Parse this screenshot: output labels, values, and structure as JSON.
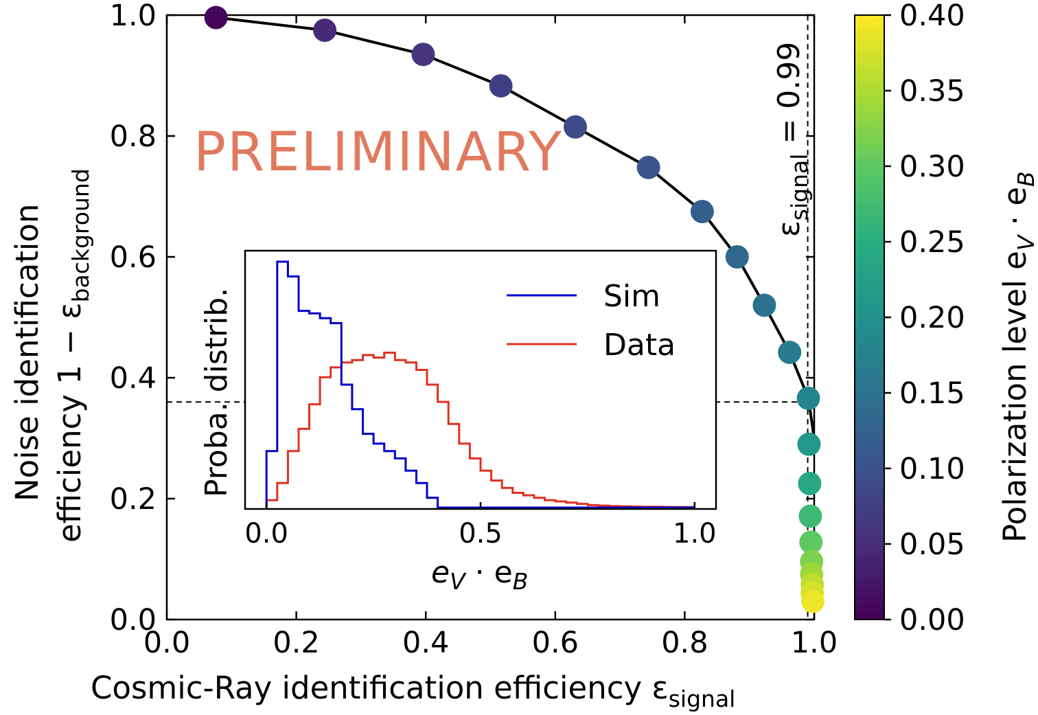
{
  "chart_data": [
    {
      "type": "scatter",
      "title": "",
      "xlabel": "Cosmic-Ray identification efficiency ε",
      "xlabel_subscript": "signal",
      "ylabel_line1": "Noise identification",
      "ylabel_line2": "efficiency 1 − ε",
      "ylabel_subscript": "background",
      "xlim": [
        0.0,
        1.0
      ],
      "ylim": [
        0.0,
        1.0
      ],
      "xticks": [
        "0.0",
        "0.2",
        "0.4",
        "0.6",
        "0.8",
        "1.0"
      ],
      "yticks": [
        "0.0",
        "0.2",
        "0.4",
        "0.6",
        "0.8",
        "1.0"
      ],
      "grid": false,
      "series": [
        {
          "x": [
            0.076,
            0.244,
            0.396,
            0.516,
            0.631,
            0.744,
            0.827,
            0.881,
            0.923,
            0.962,
            0.991,
            0.992,
            0.993,
            0.994,
            0.995,
            0.996,
            0.996,
            0.997,
            0.997,
            0.998
          ],
          "y": [
            0.996,
            0.975,
            0.935,
            0.883,
            0.815,
            0.748,
            0.675,
            0.6,
            0.52,
            0.442,
            0.366,
            0.29,
            0.225,
            0.171,
            0.128,
            0.096,
            0.075,
            0.058,
            0.044,
            0.03
          ],
          "color_values": [
            0.005,
            0.045,
            0.06,
            0.075,
            0.09,
            0.105,
            0.12,
            0.135,
            0.15,
            0.165,
            0.18,
            0.21,
            0.24,
            0.27,
            0.3,
            0.32,
            0.34,
            0.36,
            0.375,
            0.39
          ]
        },
        {
          "type": "line",
          "x": [
            0.076,
            0.244,
            0.396,
            0.516,
            0.631,
            0.744,
            0.827,
            0.881,
            0.923,
            0.962,
            0.991,
            1.0
          ],
          "y": [
            0.996,
            0.975,
            0.935,
            0.883,
            0.815,
            0.748,
            0.675,
            0.6,
            0.52,
            0.442,
            0.366,
            0.3
          ],
          "color": "#000000"
        }
      ],
      "annotations": {
        "watermark": "PRELIMINARY",
        "vline_label": "ε",
        "vline_label_subscript": "signal",
        "vline_label_suffix": " = 0.99",
        "vline_x": 0.99,
        "hline_y": 0.36
      },
      "colorbar": {
        "label": "Polarization level e",
        "label_sub1": "V",
        "label_mid": " · e",
        "label_sub2": "B",
        "range": [
          0.0,
          0.4
        ],
        "ticks": [
          "0.00",
          "0.05",
          "0.10",
          "0.15",
          "0.20",
          "0.25",
          "0.30",
          "0.35",
          "0.40"
        ],
        "colormap": "viridis"
      }
    },
    {
      "type": "line",
      "subtype": "step-histogram",
      "xlabel": "e",
      "xlabel_sub1": "V",
      "xlabel_mid": " · e",
      "xlabel_sub2": "B",
      "ylabel": "Proba. distrib.",
      "xlim": [
        -0.05,
        1.05
      ],
      "xticks": [
        "0.0",
        "0.5",
        "1.0"
      ],
      "legend_placement": "upper-right",
      "bin_width": 0.025,
      "series": [
        {
          "name": "Sim",
          "color": "#0000cc",
          "values": [
            0.23,
            1.0,
            0.94,
            0.8,
            0.79,
            0.77,
            0.75,
            0.5,
            0.4,
            0.3,
            0.26,
            0.23,
            0.2,
            0.15,
            0.1,
            0.04,
            0.0,
            0.0,
            0.0,
            0.0,
            0.0,
            0.0,
            0.0,
            0.0,
            0.0,
            0.0,
            0.0,
            0.0,
            0.0,
            0.0,
            0.0,
            0.0,
            0.0,
            0.0,
            0.0,
            0.0,
            0.0,
            0.0,
            0.0,
            0.0
          ]
        },
        {
          "name": "Data",
          "color": "#e03020",
          "values": [
            0.03,
            0.1,
            0.23,
            0.32,
            0.42,
            0.53,
            0.57,
            0.59,
            0.6,
            0.62,
            0.61,
            0.63,
            0.6,
            0.59,
            0.56,
            0.5,
            0.43,
            0.34,
            0.26,
            0.2,
            0.15,
            0.11,
            0.08,
            0.06,
            0.05,
            0.04,
            0.03,
            0.025,
            0.02,
            0.015,
            0.01,
            0.008,
            0.006,
            0.005,
            0.004,
            0.003,
            0.003,
            0.002,
            0.002,
            0.002
          ]
        }
      ]
    }
  ]
}
